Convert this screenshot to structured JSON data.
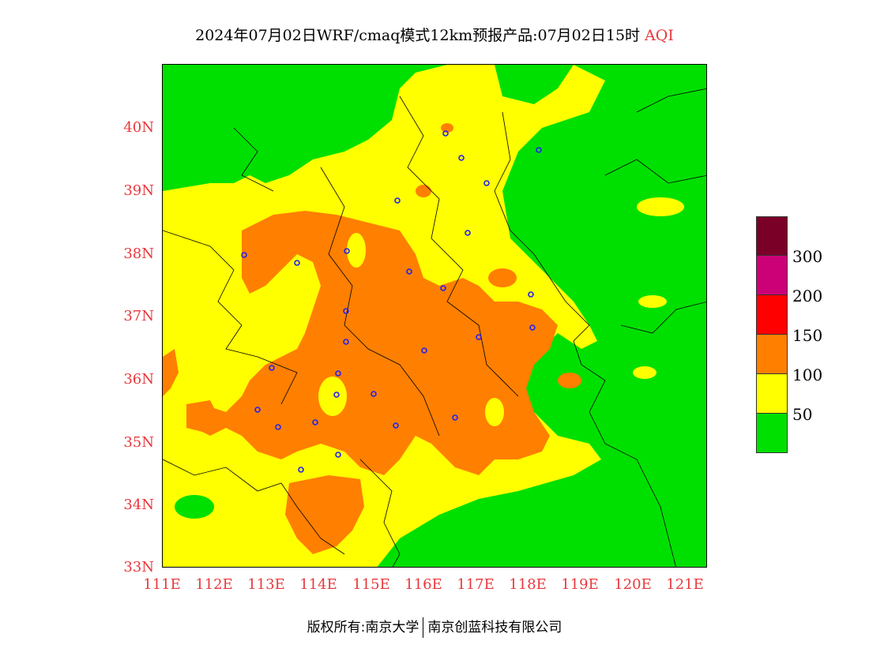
{
  "title": {
    "main": "2024年07月02日WRF/cmaq模式12km预报产品:07月02日15时",
    "variable": "AQI"
  },
  "axes": {
    "y_labels": [
      "40N",
      "39N",
      "38N",
      "37N",
      "36N",
      "35N",
      "34N",
      "33N"
    ],
    "x_labels": [
      "111E",
      "112E",
      "113E",
      "114E",
      "115E",
      "116E",
      "117E",
      "118E",
      "119E",
      "120E",
      "121E"
    ]
  },
  "legend": {
    "colors": [
      "#7b0028",
      "#cc0077",
      "#ff0000",
      "#ff7f00",
      "#ffff00",
      "#00e000"
    ],
    "labels": [
      "300",
      "200",
      "150",
      "100",
      "50"
    ]
  },
  "footer": {
    "left": "版权所有:南京大学",
    "right": "南京创蓝科技有限公司"
  }
}
